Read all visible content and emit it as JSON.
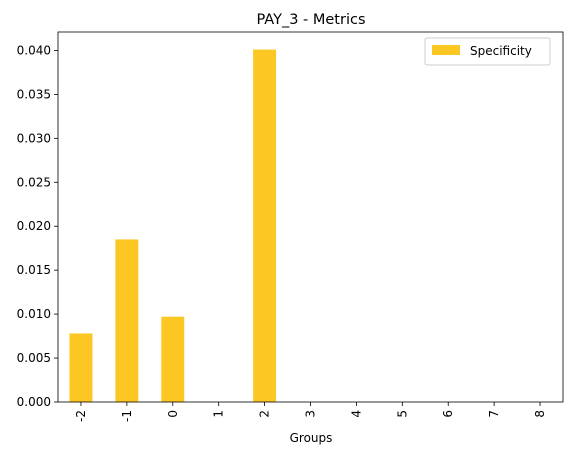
{
  "chart_data": {
    "type": "bar",
    "title": "PAY_3 - Metrics",
    "xlabel": "Groups",
    "ylabel": "",
    "categories": [
      "-2",
      "-1",
      "0",
      "1",
      "2",
      "3",
      "4",
      "5",
      "6",
      "7",
      "8"
    ],
    "series": [
      {
        "name": "Specificity",
        "values": [
          0.0078,
          0.0185,
          0.0097,
          0,
          0.0401,
          0,
          0,
          0,
          0,
          0,
          0
        ]
      }
    ],
    "ylim": [
      0,
      0.0421
    ],
    "yticks": [
      "0.000",
      "0.005",
      "0.010",
      "0.015",
      "0.020",
      "0.025",
      "0.030",
      "0.035",
      "0.040"
    ],
    "ytick_values": [
      0,
      0.005,
      0.01,
      0.015,
      0.02,
      0.025,
      0.03,
      0.035,
      0.04
    ],
    "grid": false,
    "legend_position": "top-right",
    "bar_color": "#FDC723"
  }
}
